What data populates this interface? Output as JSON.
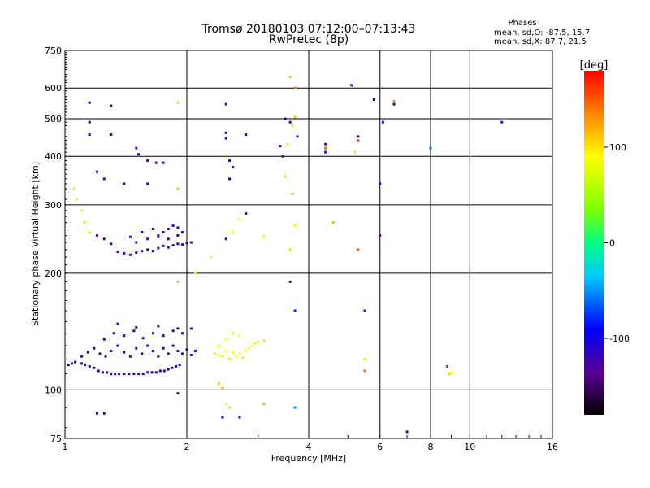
{
  "chart_data": {
    "type": "scatter",
    "title": "Tromsø 20180103 07:12:00–07:13:43",
    "subtitle": "RwPretec (8p)",
    "xlabel": "Frequency [MHz]",
    "ylabel": "Stationary phase Virtual Height [km]",
    "x_scale": "log",
    "y_scale": "log",
    "xlim": [
      1,
      16
    ],
    "ylim": [
      75,
      750
    ],
    "x_ticks": [
      1,
      2,
      4,
      6,
      8,
      10,
      16
    ],
    "y_ticks": [
      75,
      100,
      200,
      300,
      400,
      500,
      600,
      750
    ],
    "grid": true,
    "phase_info": {
      "heading": "Phases",
      "line_o": "mean, sd,O: -87.5, 15.7",
      "line_x": "mean, sd,X:  87.7, 21.5"
    },
    "colorbar": {
      "label": "[deg]",
      "range": [
        -180,
        180
      ],
      "ticks": [
        100,
        0,
        -100
      ]
    },
    "series": [
      {
        "points": [
          [
            1.02,
            116,
            -105
          ],
          [
            1.04,
            117,
            -110
          ],
          [
            1.06,
            118,
            -112
          ],
          [
            1.1,
            117,
            -110
          ],
          [
            1.12,
            116,
            -108
          ],
          [
            1.15,
            115,
            -115
          ],
          [
            1.18,
            114,
            -118
          ],
          [
            1.21,
            112,
            -120
          ],
          [
            1.24,
            111,
            -122
          ],
          [
            1.27,
            111,
            -122
          ],
          [
            1.3,
            110,
            -124
          ],
          [
            1.33,
            110,
            -124
          ],
          [
            1.36,
            110,
            -124
          ],
          [
            1.4,
            110,
            -125
          ],
          [
            1.44,
            110,
            -125
          ],
          [
            1.48,
            110,
            -125
          ],
          [
            1.52,
            110,
            -124
          ],
          [
            1.56,
            110,
            -122
          ],
          [
            1.6,
            111,
            -122
          ],
          [
            1.64,
            111,
            -120
          ],
          [
            1.68,
            111,
            -120
          ],
          [
            1.72,
            112,
            -118
          ],
          [
            1.76,
            112,
            -118
          ],
          [
            1.8,
            113,
            -116
          ],
          [
            1.84,
            114,
            -115
          ],
          [
            1.88,
            115,
            -112
          ],
          [
            1.92,
            116,
            -110
          ],
          [
            1.1,
            122,
            -115
          ],
          [
            1.14,
            125,
            -118
          ],
          [
            1.18,
            128,
            -120
          ],
          [
            1.22,
            124,
            -118
          ],
          [
            1.26,
            122,
            -120
          ],
          [
            1.3,
            126,
            -122
          ],
          [
            1.35,
            130,
            -118
          ],
          [
            1.4,
            125,
            -115
          ],
          [
            1.45,
            122,
            -120
          ],
          [
            1.5,
            128,
            -115
          ],
          [
            1.55,
            124,
            -122
          ],
          [
            1.6,
            130,
            -118
          ],
          [
            1.65,
            126,
            -115
          ],
          [
            1.7,
            122,
            -112
          ],
          [
            1.75,
            128,
            -118
          ],
          [
            1.8,
            124,
            -120
          ],
          [
            1.85,
            130,
            -115
          ],
          [
            1.9,
            126,
            -118
          ],
          [
            1.95,
            124,
            -110
          ],
          [
            2.0,
            127,
            -115
          ],
          [
            2.05,
            123,
            -112
          ],
          [
            2.1,
            126,
            -108
          ],
          [
            1.25,
            135,
            -118
          ],
          [
            1.32,
            140,
            -115
          ],
          [
            1.4,
            138,
            -120
          ],
          [
            1.48,
            142,
            -118
          ],
          [
            1.56,
            136,
            -122
          ],
          [
            1.65,
            140,
            -116
          ],
          [
            1.75,
            138,
            -118
          ],
          [
            1.85,
            142,
            -120
          ],
          [
            1.95,
            140,
            -115
          ],
          [
            2.05,
            144,
            -112
          ],
          [
            1.35,
            148,
            -125
          ],
          [
            1.5,
            145,
            -120
          ],
          [
            1.7,
            146,
            -122
          ],
          [
            1.9,
            144,
            -118
          ],
          [
            2.35,
            124,
            80
          ],
          [
            2.4,
            123,
            85
          ],
          [
            2.45,
            122,
            95
          ],
          [
            2.5,
            126,
            90
          ],
          [
            2.55,
            120,
            100
          ],
          [
            2.6,
            125,
            88
          ],
          [
            2.65,
            122,
            92
          ],
          [
            2.7,
            124,
            90
          ],
          [
            2.75,
            121,
            95
          ],
          [
            2.8,
            126,
            88
          ],
          [
            2.85,
            128,
            90
          ],
          [
            2.9,
            130,
            85
          ],
          [
            2.95,
            132,
            82
          ],
          [
            3.0,
            133,
            80
          ],
          [
            3.1,
            134,
            75
          ],
          [
            2.5,
            135,
            90
          ],
          [
            2.6,
            140,
            88
          ],
          [
            2.7,
            138,
            92
          ],
          [
            2.4,
            130,
            85
          ],
          [
            2.4,
            104,
            110
          ],
          [
            2.45,
            101,
            120
          ],
          [
            2.5,
            92,
            95
          ],
          [
            2.55,
            90,
            60
          ],
          [
            1.35,
            227,
            -125
          ],
          [
            1.4,
            225,
            -122
          ],
          [
            1.45,
            223,
            -120
          ],
          [
            1.5,
            226,
            -118
          ],
          [
            1.55,
            228,
            -120
          ],
          [
            1.6,
            230,
            -122
          ],
          [
            1.65,
            228,
            -125
          ],
          [
            1.7,
            232,
            -120
          ],
          [
            1.75,
            235,
            -118
          ],
          [
            1.8,
            233,
            -115
          ],
          [
            1.85,
            236,
            -118
          ],
          [
            1.9,
            238,
            -120
          ],
          [
            1.95,
            237,
            -116
          ],
          [
            2.0,
            239,
            -118
          ],
          [
            2.05,
            240,
            -115
          ],
          [
            1.5,
            240,
            -110
          ],
          [
            1.6,
            245,
            -115
          ],
          [
            1.7,
            250,
            -118
          ],
          [
            1.75,
            255,
            -120
          ],
          [
            1.8,
            260,
            -122
          ],
          [
            1.85,
            265,
            -118
          ],
          [
            1.9,
            262,
            -115
          ],
          [
            1.95,
            255,
            -140
          ],
          [
            1.7,
            248,
            -150
          ],
          [
            1.8,
            245,
            -155
          ],
          [
            1.9,
            250,
            -148
          ],
          [
            1.65,
            260,
            -110
          ],
          [
            1.55,
            255,
            -105
          ],
          [
            1.45,
            248,
            -112
          ],
          [
            1.05,
            330,
            70
          ],
          [
            1.07,
            310,
            80
          ],
          [
            1.1,
            290,
            75
          ],
          [
            1.12,
            270,
            72
          ],
          [
            1.15,
            255,
            68
          ],
          [
            1.2,
            250,
            -140
          ],
          [
            1.25,
            245,
            -130
          ],
          [
            1.3,
            238,
            -125
          ],
          [
            1.15,
            550,
            -120
          ],
          [
            1.3,
            540,
            -125
          ],
          [
            1.15,
            490,
            -120
          ],
          [
            1.15,
            455,
            -120
          ],
          [
            1.3,
            455,
            -120
          ],
          [
            1.5,
            420,
            -125
          ],
          [
            1.52,
            405,
            -125
          ],
          [
            1.6,
            390,
            -130
          ],
          [
            1.68,
            385,
            -125
          ],
          [
            1.75,
            385,
            -120
          ],
          [
            1.2,
            365,
            -120
          ],
          [
            1.25,
            350,
            -118
          ],
          [
            1.4,
            340,
            -115
          ],
          [
            1.6,
            340,
            -120
          ],
          [
            1.9,
            550,
            100
          ],
          [
            1.9,
            330,
            50
          ],
          [
            2.5,
            545,
            -120
          ],
          [
            2.5,
            460,
            -120
          ],
          [
            2.5,
            445,
            -118
          ],
          [
            2.8,
            455,
            -125
          ],
          [
            2.55,
            390,
            -110
          ],
          [
            2.6,
            375,
            -115
          ],
          [
            2.55,
            350,
            -105
          ],
          [
            2.7,
            275,
            90
          ],
          [
            2.8,
            285,
            -130
          ],
          [
            2.6,
            255,
            90
          ],
          [
            2.5,
            245,
            -130
          ],
          [
            3.1,
            248,
            80
          ],
          [
            3.4,
            425,
            -140
          ],
          [
            3.45,
            400,
            -135
          ],
          [
            3.5,
            355,
            110
          ],
          [
            3.65,
            320,
            115
          ],
          [
            3.7,
            265,
            95
          ],
          [
            3.6,
            230,
            70
          ],
          [
            3.75,
            450,
            -120
          ],
          [
            3.55,
            430,
            100
          ],
          [
            3.6,
            490,
            -125
          ],
          [
            3.7,
            600,
            140
          ],
          [
            3.6,
            640,
            110
          ],
          [
            3.7,
            505,
            110
          ],
          [
            3.65,
            480,
            70
          ],
          [
            3.5,
            500,
            -110
          ],
          [
            3.6,
            190,
            -140
          ],
          [
            3.7,
            160,
            -80
          ],
          [
            3.7,
            90,
            -50
          ],
          [
            2.7,
            85,
            -130
          ],
          [
            2.45,
            85,
            -120
          ],
          [
            3.1,
            92,
            120
          ],
          [
            1.9,
            98,
            -140
          ],
          [
            1.2,
            87,
            -110
          ],
          [
            1.25,
            87,
            -115
          ],
          [
            1.9,
            190,
            110
          ],
          [
            2.1,
            200,
            90
          ],
          [
            2.3,
            220,
            80
          ],
          [
            4.4,
            430,
            -140
          ],
          [
            4.4,
            420,
            150
          ],
          [
            4.4,
            410,
            -90
          ],
          [
            4.6,
            270,
            120
          ],
          [
            5.1,
            610,
            -80
          ],
          [
            5.2,
            410,
            100
          ],
          [
            5.3,
            450,
            -140
          ],
          [
            5.3,
            440,
            150
          ],
          [
            5.3,
            230,
            150
          ],
          [
            5.5,
            160,
            -80
          ],
          [
            5.5,
            120,
            100
          ],
          [
            5.5,
            112,
            140
          ],
          [
            5.8,
            560,
            -90
          ],
          [
            6.0,
            340,
            -110
          ],
          [
            6.1,
            490,
            -100
          ],
          [
            6.0,
            250,
            -130
          ],
          [
            6.5,
            555,
            130
          ],
          [
            6.5,
            545,
            -150
          ],
          [
            7.0,
            78,
            -130
          ],
          [
            8.0,
            420,
            -60
          ],
          [
            8.8,
            115,
            -70
          ],
          [
            8.9,
            110,
            110
          ],
          [
            9.0,
            111,
            90
          ],
          [
            12.0,
            490,
            -80
          ]
        ]
      }
    ]
  }
}
